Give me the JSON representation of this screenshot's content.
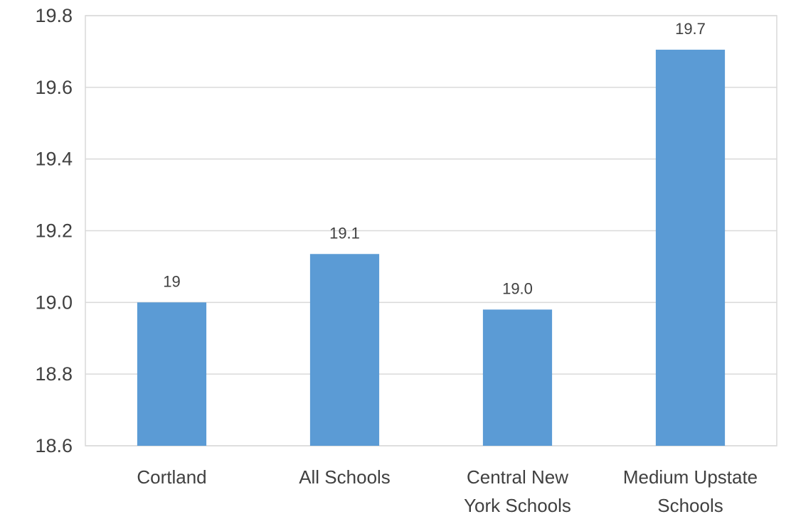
{
  "chart_data": {
    "type": "bar",
    "title": "",
    "xlabel": "",
    "ylabel": "",
    "categories": [
      [
        "Cortland"
      ],
      [
        "All Schools"
      ],
      [
        "Central New",
        "York Schools"
      ],
      [
        "Medium Upstate",
        "Schools"
      ]
    ],
    "values": [
      19.0,
      19.135,
      18.98,
      19.705
    ],
    "data_labels": [
      "19",
      "19.1",
      "19.0",
      "19.7"
    ],
    "ylim": [
      18.6,
      19.8
    ],
    "yticks": [
      18.6,
      18.8,
      19.0,
      19.2,
      19.4,
      19.6,
      19.8
    ],
    "ytick_labels": [
      "18.6",
      "18.8",
      "19.0",
      "19.2",
      "19.4",
      "19.6",
      "19.8"
    ],
    "grid": true,
    "legend": "none",
    "colors": {
      "bar": "#5b9bd5",
      "grid": "#d9d9d9",
      "text": "#404040"
    }
  }
}
